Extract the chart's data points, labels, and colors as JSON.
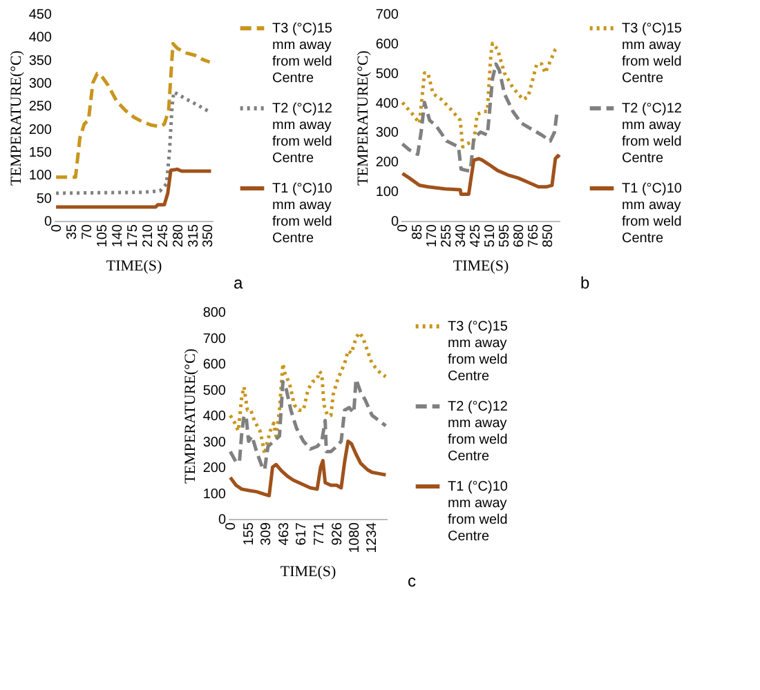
{
  "chart_data": [
    {
      "type": "line",
      "xlabel": "TIME(S)",
      "ylabel": "TEMPERATURE(°C)",
      "xlim": [
        -5,
        362
      ],
      "xticks": [
        0,
        35,
        70,
        105,
        140,
        175,
        210,
        245,
        280,
        315,
        350
      ],
      "ylim": [
        0,
        450
      ],
      "yticks": [
        0,
        50,
        100,
        150,
        200,
        250,
        300,
        350,
        400,
        450
      ],
      "grid": false,
      "legend": "right",
      "annotations": [
        "a"
      ],
      "series": [
        {
          "name": "T3 (°C)15 mm away from weld Centre",
          "color": "#c8961e",
          "line_style": "dashed",
          "x": [
            0,
            35,
            45,
            55,
            65,
            75,
            85,
            95,
            105,
            120,
            140,
            160,
            180,
            200,
            220,
            240,
            250,
            260,
            270,
            280,
            300,
            320,
            340,
            355
          ],
          "values": [
            95,
            95,
            95,
            180,
            210,
            220,
            300,
            320,
            315,
            295,
            260,
            240,
            225,
            215,
            208,
            205,
            210,
            240,
            385,
            375,
            365,
            360,
            350,
            345
          ]
        },
        {
          "name": "T2 (°C)12 mm away from weld Centre",
          "color": "#808080",
          "line_style": "dotted",
          "x": [
            0,
            200,
            240,
            255,
            262,
            268,
            272,
            300,
            330,
            358
          ],
          "values": [
            60,
            62,
            65,
            80,
            150,
            250,
            280,
            265,
            250,
            235
          ]
        },
        {
          "name": "T1 (°C)10 mm away from weld Centre",
          "color": "#a0521b",
          "line_style": "solid",
          "x": [
            0,
            230,
            235,
            250,
            258,
            265,
            280,
            290,
            358
          ],
          "values": [
            30,
            30,
            35,
            35,
            60,
            110,
            112,
            108,
            108
          ]
        }
      ]
    },
    {
      "type": "line",
      "xlabel": "TIME(S)",
      "ylabel": "TEMPERATURE(°C)",
      "xlim": [
        -10,
        925
      ],
      "xticks": [
        0,
        85,
        170,
        255,
        340,
        425,
        510,
        595,
        680,
        765,
        850
      ],
      "ylim": [
        0,
        700
      ],
      "yticks": [
        0,
        100,
        200,
        300,
        400,
        500,
        600,
        700
      ],
      "grid": false,
      "legend": "right",
      "annotations": [
        "b"
      ],
      "series": [
        {
          "name": "T3 (°C)15 mm away from weld Centre",
          "color": "#c8961e",
          "line_style": "dotted",
          "x": [
            0,
            60,
            100,
            130,
            150,
            180,
            230,
            280,
            340,
            355,
            380,
            420,
            440,
            480,
            500,
            520,
            530,
            560,
            600,
            650,
            710,
            740,
            790,
            820,
            840,
            870,
            900,
            915
          ],
          "values": [
            400,
            360,
            330,
            500,
            500,
            430,
            410,
            380,
            340,
            250,
            260,
            270,
            360,
            370,
            370,
            560,
            600,
            580,
            500,
            450,
            410,
            420,
            530,
            530,
            500,
            540,
            580,
            590
          ]
        },
        {
          "name": "T2 (°C)12 mm away from weld Centre",
          "color": "#808080",
          "line_style": "dashed",
          "x": [
            0,
            40,
            90,
            110,
            130,
            160,
            200,
            260,
            330,
            345,
            380,
            400,
            420,
            460,
            500,
            530,
            550,
            570,
            600,
            650,
            700,
            760,
            820,
            870,
            895,
            910,
            920
          ],
          "values": [
            260,
            240,
            225,
            300,
            400,
            340,
            320,
            270,
            250,
            175,
            170,
            170,
            280,
            300,
            290,
            480,
            530,
            510,
            430,
            370,
            330,
            310,
            290,
            270,
            300,
            370,
            370
          ]
        },
        {
          "name": "T1 (°C)10 mm away from weld Centre",
          "color": "#a0521b",
          "line_style": "solid",
          "x": [
            0,
            40,
            100,
            150,
            250,
            340,
            345,
            390,
            400,
            420,
            450,
            470,
            510,
            560,
            620,
            680,
            740,
            800,
            850,
            880,
            900,
            915,
            925
          ],
          "values": [
            160,
            145,
            120,
            115,
            108,
            105,
            90,
            90,
            130,
            205,
            210,
            205,
            190,
            170,
            155,
            145,
            130,
            115,
            115,
            120,
            210,
            220,
            215
          ]
        }
      ]
    },
    {
      "type": "line",
      "xlabel": "TIME(S)",
      "ylabel": "TEMPERATURE(°C)",
      "xlim": [
        -20,
        1370
      ],
      "xticks": [
        0,
        155,
        309,
        463,
        617,
        771,
        926,
        1080,
        1234
      ],
      "ylim": [
        0,
        800
      ],
      "yticks": [
        0,
        100,
        200,
        300,
        400,
        500,
        600,
        700,
        800
      ],
      "grid": false,
      "legend": "right",
      "annotations": [
        "c"
      ],
      "series": [
        {
          "name": "T3 (°C)15 mm away from weld Centre",
          "color": "#c8961e",
          "line_style": "dotted",
          "x": [
            0,
            40,
            70,
            100,
            120,
            150,
            180,
            210,
            260,
            280,
            300,
            320,
            350,
            380,
            400,
            430,
            460,
            480,
            520,
            560,
            600,
            640,
            680,
            720,
            760,
            780,
            800,
            820,
            850,
            880,
            900,
            940,
            960,
            1000,
            1030,
            1060,
            1100,
            1130,
            1160,
            1200,
            1240,
            1280,
            1320,
            1360
          ],
          "values": [
            400,
            370,
            340,
            470,
            510,
            420,
            420,
            380,
            340,
            300,
            250,
            290,
            340,
            370,
            320,
            420,
            600,
            560,
            520,
            440,
            420,
            420,
            500,
            530,
            540,
            570,
            560,
            440,
            400,
            400,
            480,
            540,
            560,
            600,
            650,
            640,
            700,
            720,
            700,
            650,
            600,
            580,
            560,
            550
          ]
        },
        {
          "name": "T2 (°C)12 mm away from weld Centre",
          "color": "#808080",
          "line_style": "dashed",
          "x": [
            0,
            50,
            80,
            100,
            120,
            140,
            160,
            190,
            230,
            280,
            300,
            330,
            380,
            430,
            460,
            490,
            530,
            580,
            640,
            700,
            760,
            800,
            830,
            840,
            880,
            930,
            970,
            1000,
            1040,
            1080,
            1100,
            1140,
            1180,
            1240,
            1300,
            1360
          ],
          "values": [
            260,
            220,
            220,
            330,
            400,
            390,
            300,
            320,
            260,
            200,
            190,
            280,
            300,
            320,
            530,
            500,
            420,
            350,
            300,
            270,
            280,
            300,
            380,
            260,
            260,
            280,
            300,
            420,
            430,
            410,
            540,
            490,
            460,
            400,
            380,
            360
          ]
        },
        {
          "name": "T1 (°C)10 mm away from weld Centre",
          "color": "#a0521b",
          "line_style": "solid",
          "x": [
            0,
            50,
            100,
            160,
            230,
            300,
            340,
            370,
            400,
            450,
            500,
            550,
            600,
            650,
            700,
            760,
            790,
            810,
            830,
            880,
            930,
            970,
            1000,
            1030,
            1060,
            1100,
            1140,
            1200,
            1240,
            1300,
            1360
          ],
          "values": [
            160,
            130,
            115,
            110,
            105,
            95,
            90,
            200,
            210,
            185,
            165,
            150,
            140,
            130,
            120,
            115,
            200,
            225,
            140,
            130,
            130,
            120,
            220,
            300,
            290,
            250,
            215,
            190,
            180,
            175,
            170
          ]
        }
      ]
    }
  ]
}
